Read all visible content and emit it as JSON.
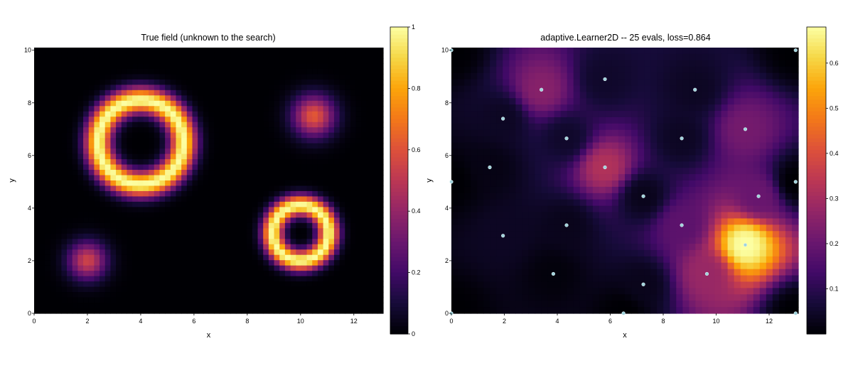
{
  "chart_data": [
    {
      "type": "heatmap",
      "title": "True field (unknown to the search)",
      "xlabel": "x",
      "ylabel": "y",
      "xlim": [
        0,
        13.1
      ],
      "ylim": [
        0,
        10.1
      ],
      "xticks": [
        "0",
        "2",
        "4",
        "6",
        "8",
        "10",
        "12"
      ],
      "yticks": [
        "0",
        "2",
        "4",
        "6",
        "8",
        "10"
      ],
      "colormap": "inferno",
      "colorbar": {
        "range": [
          0,
          1
        ],
        "ticks": [
          "0",
          "0.2",
          "0.4",
          "0.6",
          "0.8",
          "1"
        ]
      },
      "features": [
        {
          "kind": "ring",
          "cx": 4.0,
          "cy": 6.5,
          "radius": 1.6,
          "width": 0.35,
          "peak": 1.0
        },
        {
          "kind": "ring",
          "cx": 10.0,
          "cy": 3.05,
          "radius": 1.05,
          "width": 0.28,
          "peak": 1.0
        },
        {
          "kind": "blob",
          "cx": 10.5,
          "cy": 7.5,
          "sigma": 0.55,
          "peak": 0.62
        },
        {
          "kind": "blob",
          "cx": 2.0,
          "cy": 2.0,
          "sigma": 0.5,
          "peak": 0.55
        }
      ]
    },
    {
      "type": "heatmap",
      "title": "adaptive.Learner2D -- 25 evals, loss=0.864",
      "xlabel": "x",
      "ylabel": "y",
      "xlim": [
        0,
        13.1
      ],
      "ylim": [
        0,
        10.1
      ],
      "xticks": [
        "0",
        "2",
        "4",
        "6",
        "8",
        "10",
        "12"
      ],
      "yticks": [
        "0",
        "2",
        "4",
        "6",
        "8",
        "10"
      ],
      "colormap": "inferno",
      "colorbar": {
        "range": [
          0,
          0.68
        ],
        "ticks": [
          "0.1",
          "0.2",
          "0.3",
          "0.4",
          "0.5",
          "0.6"
        ]
      },
      "points": [
        {
          "x": 0.0,
          "y": 5.0,
          "value": 0.0
        },
        {
          "x": 13.0,
          "y": 5.0,
          "value": 0.0
        },
        {
          "x": 6.5,
          "y": 0.0,
          "value": 0.0
        },
        {
          "x": 5.8,
          "y": 8.9,
          "value": 0.05
        },
        {
          "x": 3.4,
          "y": 8.5,
          "value": 0.25
        },
        {
          "x": 9.2,
          "y": 8.5,
          "value": 0.04
        },
        {
          "x": 1.95,
          "y": 7.4,
          "value": 0.04
        },
        {
          "x": 11.1,
          "y": 7.0,
          "value": 0.22
        },
        {
          "x": 4.35,
          "y": 6.65,
          "value": 0.05
        },
        {
          "x": 8.7,
          "y": 6.65,
          "value": 0.04
        },
        {
          "x": 1.45,
          "y": 5.55,
          "value": 0.02
        },
        {
          "x": 5.8,
          "y": 5.55,
          "value": 0.32
        },
        {
          "x": 7.25,
          "y": 4.45,
          "value": 0.03
        },
        {
          "x": 11.6,
          "y": 4.45,
          "value": 0.2
        },
        {
          "x": 4.35,
          "y": 3.35,
          "value": 0.03
        },
        {
          "x": 8.7,
          "y": 3.35,
          "value": 0.18
        },
        {
          "x": 1.95,
          "y": 2.95,
          "value": 0.04
        },
        {
          "x": 11.1,
          "y": 2.6,
          "value": 0.68
        },
        {
          "x": 3.85,
          "y": 1.5,
          "value": 0.01
        },
        {
          "x": 9.65,
          "y": 1.5,
          "value": 0.28
        },
        {
          "x": 7.25,
          "y": 1.1,
          "value": 0.03
        },
        {
          "x": 0.0,
          "y": 10.0,
          "value": 0.0
        },
        {
          "x": 13.0,
          "y": 10.0,
          "value": 0.0
        },
        {
          "x": 0.0,
          "y": 0.0,
          "value": 0.0
        },
        {
          "x": 13.0,
          "y": 0.0,
          "value": 0.0
        }
      ]
    }
  ]
}
